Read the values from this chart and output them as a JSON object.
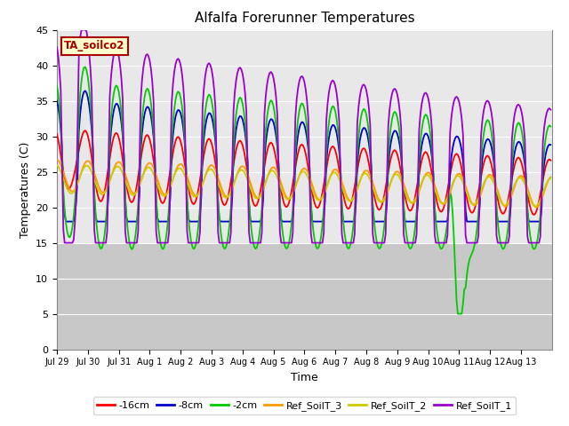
{
  "title": "Alfalfa Forerunner Temperatures",
  "xlabel": "Time",
  "ylabel": "Temperatures (C)",
  "ylim": [
    0,
    45
  ],
  "yticks": [
    0,
    5,
    10,
    15,
    20,
    25,
    30,
    35,
    40,
    45
  ],
  "xlim": [
    0,
    16
  ],
  "series_colors": {
    "-16cm": "#ff0000",
    "-8cm": "#0000cc",
    "-2cm": "#00cc00",
    "Ref_SoilT_3": "#ff9900",
    "Ref_SoilT_2": "#cccc00",
    "Ref_SoilT_1": "#9900cc"
  },
  "annotation_label": "TA_soilco2",
  "annotation_color": "#aa0000",
  "annotation_bg": "#ffffcc",
  "background_plot_upper": "#e8e8e8",
  "background_plot_lower": "#d0d0d0",
  "background_fig": "#ffffff",
  "x_tick_positions": [
    0,
    1,
    2,
    3,
    4,
    5,
    6,
    7,
    8,
    9,
    10,
    11,
    12,
    13,
    14,
    15,
    16
  ],
  "x_tick_labels": [
    "Jul 29",
    "Jul 30",
    "Jul 31",
    "Aug 1",
    "Aug 2",
    "Aug 3",
    "Aug 4",
    "Aug 5",
    "Aug 6",
    "Aug 7",
    "Aug 8",
    "Aug 9",
    "Aug 10",
    "Aug 11",
    "Aug 12",
    "Aug 13",
    ""
  ],
  "lw": 1.3
}
